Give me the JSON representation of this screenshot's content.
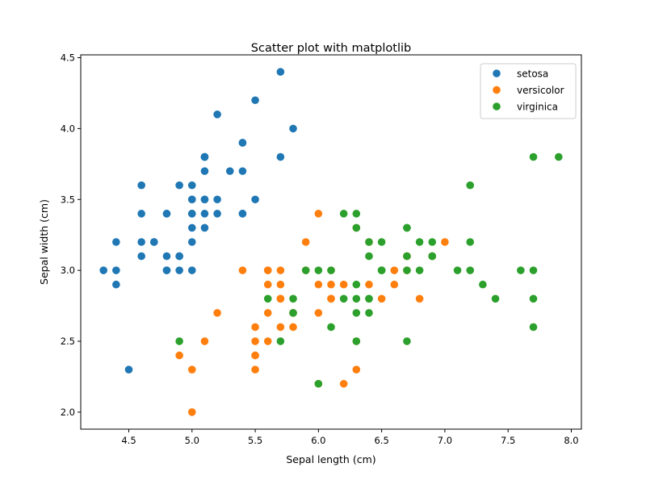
{
  "chart_data": {
    "type": "scatter",
    "title": "Scatter plot with matplotlib",
    "xlabel": "Sepal length (cm)",
    "ylabel": "Sepal width (cm)",
    "xlim": [
      4.12,
      8.08
    ],
    "ylim": [
      1.88,
      4.52
    ],
    "xticks": [
      "4.5",
      "5.0",
      "5.5",
      "6.0",
      "6.5",
      "7.0",
      "7.5",
      "8.0"
    ],
    "yticks": [
      "2.0",
      "2.5",
      "3.0",
      "3.5",
      "4.0",
      "4.5"
    ],
    "grid": false,
    "legend_position": "top-right",
    "series": [
      {
        "name": "setosa",
        "color": "#1f77b4",
        "points": [
          [
            5.1,
            3.5
          ],
          [
            4.9,
            3.0
          ],
          [
            4.7,
            3.2
          ],
          [
            4.6,
            3.1
          ],
          [
            5.0,
            3.6
          ],
          [
            5.4,
            3.9
          ],
          [
            4.6,
            3.4
          ],
          [
            5.0,
            3.4
          ],
          [
            4.4,
            2.9
          ],
          [
            4.9,
            3.1
          ],
          [
            5.4,
            3.7
          ],
          [
            4.8,
            3.4
          ],
          [
            4.8,
            3.0
          ],
          [
            4.3,
            3.0
          ],
          [
            5.8,
            4.0
          ],
          [
            5.7,
            4.4
          ],
          [
            5.4,
            3.9
          ],
          [
            5.1,
            3.5
          ],
          [
            5.7,
            3.8
          ],
          [
            5.1,
            3.8
          ],
          [
            5.4,
            3.4
          ],
          [
            5.1,
            3.7
          ],
          [
            4.6,
            3.6
          ],
          [
            5.1,
            3.3
          ],
          [
            4.8,
            3.4
          ],
          [
            5.0,
            3.0
          ],
          [
            5.0,
            3.4
          ],
          [
            5.2,
            3.5
          ],
          [
            5.2,
            3.4
          ],
          [
            4.7,
            3.2
          ],
          [
            4.8,
            3.1
          ],
          [
            5.4,
            3.4
          ],
          [
            5.2,
            4.1
          ],
          [
            5.5,
            4.2
          ],
          [
            4.9,
            3.1
          ],
          [
            5.0,
            3.2
          ],
          [
            5.5,
            3.5
          ],
          [
            4.9,
            3.6
          ],
          [
            4.4,
            3.0
          ],
          [
            5.1,
            3.4
          ],
          [
            5.0,
            3.5
          ],
          [
            4.5,
            2.3
          ],
          [
            4.4,
            3.2
          ],
          [
            5.0,
            3.5
          ],
          [
            5.1,
            3.8
          ],
          [
            4.8,
            3.0
          ],
          [
            5.1,
            3.8
          ],
          [
            4.6,
            3.2
          ],
          [
            5.3,
            3.7
          ],
          [
            5.0,
            3.3
          ]
        ]
      },
      {
        "name": "versicolor",
        "color": "#ff7f0e",
        "points": [
          [
            7.0,
            3.2
          ],
          [
            6.4,
            3.2
          ],
          [
            6.9,
            3.1
          ],
          [
            5.5,
            2.3
          ],
          [
            6.5,
            2.8
          ],
          [
            5.7,
            2.8
          ],
          [
            6.3,
            3.3
          ],
          [
            4.9,
            2.4
          ],
          [
            6.6,
            2.9
          ],
          [
            5.2,
            2.7
          ],
          [
            5.0,
            2.0
          ],
          [
            5.9,
            3.0
          ],
          [
            6.0,
            2.2
          ],
          [
            6.1,
            2.9
          ],
          [
            5.6,
            2.9
          ],
          [
            6.7,
            3.1
          ],
          [
            5.6,
            3.0
          ],
          [
            5.8,
            2.7
          ],
          [
            6.2,
            2.2
          ],
          [
            5.6,
            2.5
          ],
          [
            5.9,
            3.2
          ],
          [
            6.1,
            2.8
          ],
          [
            6.3,
            2.5
          ],
          [
            6.1,
            2.8
          ],
          [
            6.4,
            2.9
          ],
          [
            6.6,
            3.0
          ],
          [
            6.8,
            2.8
          ],
          [
            6.7,
            3.0
          ],
          [
            6.0,
            2.9
          ],
          [
            5.7,
            2.6
          ],
          [
            5.5,
            2.4
          ],
          [
            5.5,
            2.4
          ],
          [
            5.8,
            2.7
          ],
          [
            6.0,
            2.7
          ],
          [
            5.4,
            3.0
          ],
          [
            6.0,
            3.4
          ],
          [
            6.7,
            3.1
          ],
          [
            6.3,
            2.3
          ],
          [
            5.6,
            3.0
          ],
          [
            5.5,
            2.5
          ],
          [
            5.5,
            2.6
          ],
          [
            6.1,
            3.0
          ],
          [
            5.8,
            2.6
          ],
          [
            5.0,
            2.3
          ],
          [
            5.6,
            2.7
          ],
          [
            5.7,
            3.0
          ],
          [
            5.7,
            2.9
          ],
          [
            6.2,
            2.9
          ],
          [
            5.1,
            2.5
          ],
          [
            5.7,
            2.8
          ]
        ]
      },
      {
        "name": "virginica",
        "color": "#2ca02c",
        "points": [
          [
            6.3,
            3.3
          ],
          [
            5.8,
            2.7
          ],
          [
            7.1,
            3.0
          ],
          [
            6.3,
            2.9
          ],
          [
            6.5,
            3.0
          ],
          [
            7.6,
            3.0
          ],
          [
            4.9,
            2.5
          ],
          [
            7.3,
            2.9
          ],
          [
            6.7,
            2.5
          ],
          [
            7.2,
            3.6
          ],
          [
            6.5,
            3.2
          ],
          [
            6.4,
            2.7
          ],
          [
            6.8,
            3.0
          ],
          [
            5.7,
            2.5
          ],
          [
            5.8,
            2.8
          ],
          [
            6.4,
            3.2
          ],
          [
            6.5,
            3.0
          ],
          [
            7.7,
            3.8
          ],
          [
            7.7,
            2.6
          ],
          [
            6.0,
            2.2
          ],
          [
            6.9,
            3.2
          ],
          [
            5.6,
            2.8
          ],
          [
            7.7,
            2.8
          ],
          [
            6.3,
            2.7
          ],
          [
            6.7,
            3.3
          ],
          [
            7.2,
            3.2
          ],
          [
            6.2,
            2.8
          ],
          [
            6.1,
            3.0
          ],
          [
            6.4,
            2.8
          ],
          [
            7.2,
            3.0
          ],
          [
            7.4,
            2.8
          ],
          [
            7.9,
            3.8
          ],
          [
            6.4,
            2.8
          ],
          [
            6.3,
            2.8
          ],
          [
            6.1,
            2.6
          ],
          [
            7.7,
            3.0
          ],
          [
            6.3,
            3.4
          ],
          [
            6.4,
            3.1
          ],
          [
            6.0,
            3.0
          ],
          [
            6.9,
            3.1
          ],
          [
            6.7,
            3.1
          ],
          [
            6.9,
            3.1
          ],
          [
            5.8,
            2.7
          ],
          [
            6.8,
            3.2
          ],
          [
            6.7,
            3.3
          ],
          [
            6.7,
            3.0
          ],
          [
            6.3,
            2.5
          ],
          [
            6.5,
            3.0
          ],
          [
            6.2,
            3.4
          ],
          [
            5.9,
            3.0
          ]
        ]
      }
    ]
  }
}
